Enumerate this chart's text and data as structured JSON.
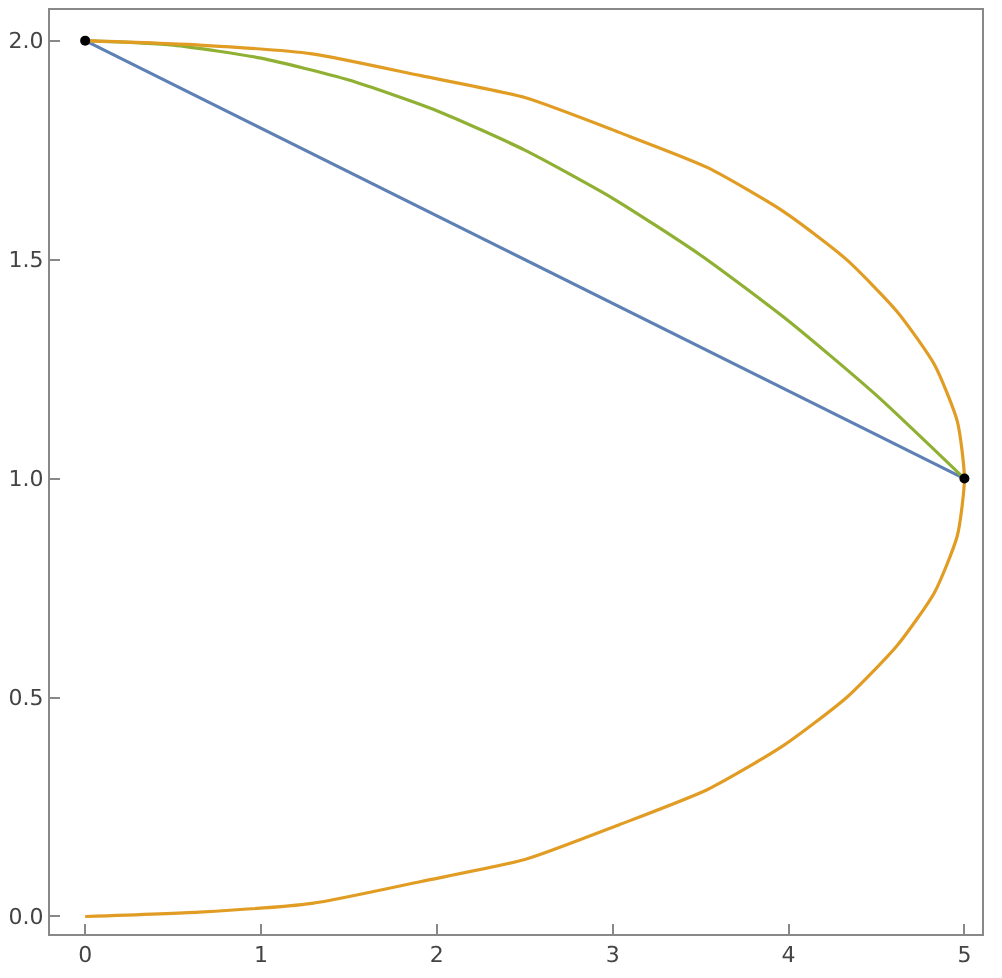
{
  "chart_data": {
    "type": "line",
    "xlim": [
      -0.2,
      5.1
    ],
    "ylim": [
      -0.04,
      2.07
    ],
    "xticks": [
      0,
      1,
      2,
      3,
      4,
      5
    ],
    "yticks": [
      {
        "value": 0,
        "label": "0.0"
      },
      {
        "value": 0.5,
        "label": "0.5"
      },
      {
        "value": 1,
        "label": "1.0"
      },
      {
        "value": 1.5,
        "label": "1.5"
      },
      {
        "value": 2,
        "label": "2.0"
      }
    ],
    "marker": "none",
    "line_style": "solid",
    "series": [
      {
        "color": "#5e81b5",
        "x": [
          0,
          5
        ],
        "values": [
          2,
          1
        ]
      },
      {
        "color": "#8fb032",
        "x": [
          0,
          0.5,
          1,
          1.5,
          2,
          2.5,
          3,
          3.5,
          4,
          4.5,
          5
        ],
        "values": [
          2,
          1.99,
          1.96,
          1.91,
          1.84,
          1.75,
          1.64,
          1.51,
          1.36,
          1.19,
          1
        ]
      },
      {
        "color": "#e19c24",
        "x": [
          0,
          0.65,
          1.29,
          1.91,
          2.5,
          3.04,
          3.54,
          3.97,
          4.33,
          4.62,
          4.83,
          4.96,
          5,
          4.96,
          4.83,
          4.62,
          4.33,
          3.97,
          3.54,
          3.04,
          2.5,
          1.91,
          1.29,
          0.65,
          0
        ],
        "values": [
          0,
          0.01,
          0.03,
          0.08,
          0.13,
          0.21,
          0.29,
          0.39,
          0.5,
          0.62,
          0.74,
          0.87,
          1,
          1.13,
          1.26,
          1.38,
          1.5,
          1.61,
          1.71,
          1.79,
          1.87,
          1.92,
          1.97,
          1.99,
          2
        ]
      },
      {
        "type": "scatter",
        "marker": "circle",
        "color": "#000000",
        "x": [
          0,
          5
        ],
        "values": [
          2,
          1
        ]
      }
    ]
  }
}
